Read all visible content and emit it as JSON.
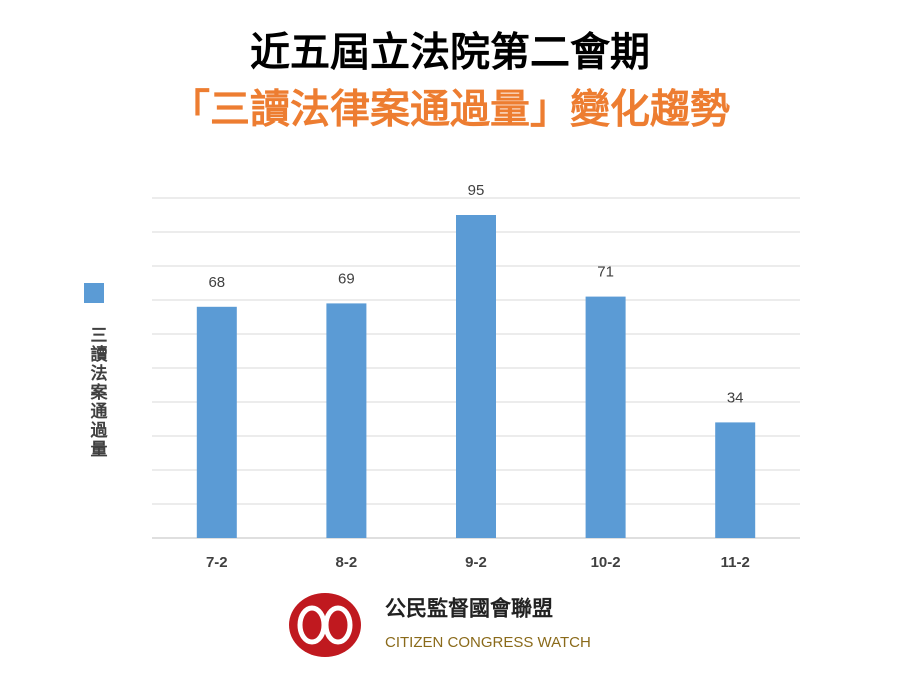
{
  "chart_data": {
    "type": "bar",
    "title": "近五屆立法院第二會期",
    "subtitle": "「三讀法律案通過量」變化趨勢",
    "categories": [
      "7-2",
      "8-2",
      "9-2",
      "10-2",
      "11-2"
    ],
    "series": [
      {
        "name": "三讀法案通過量",
        "color": "#5b9bd5",
        "values": [
          68,
          69,
          95,
          71,
          34
        ]
      }
    ],
    "ylim": [
      0,
      100
    ],
    "yticks": [
      0,
      10,
      20,
      30,
      40,
      50,
      60,
      70,
      80,
      90,
      100
    ],
    "grid": true
  },
  "logo": {
    "name_zh": "公民監督國會聯盟",
    "name_en": "CITIZEN CONGRESS WATCH"
  }
}
